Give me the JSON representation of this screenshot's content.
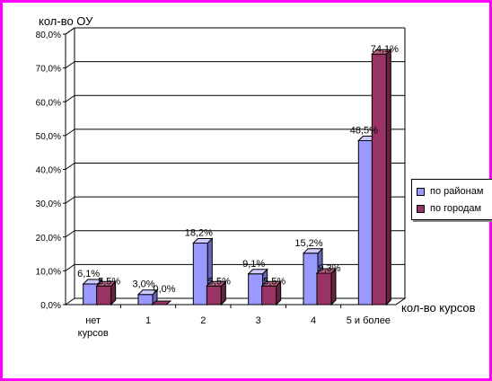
{
  "chart_data": {
    "type": "bar",
    "ylabel": "кол-во ОУ",
    "xlabel": "кол-во курсов",
    "ylim": [
      0,
      80
    ],
    "y_ticks": [
      "0,0%",
      "10,0%",
      "20,0%",
      "30,0%",
      "40,0%",
      "50,0%",
      "60,0%",
      "70,0%",
      "80,0%"
    ],
    "categories": [
      [
        "нет",
        "курсов"
      ],
      [
        "1"
      ],
      [
        "2"
      ],
      [
        "3"
      ],
      [
        "4"
      ],
      [
        "5 и более"
      ]
    ],
    "series": [
      {
        "name": "по районам",
        "color": "#9999ff",
        "values": [
          6.1,
          3.0,
          18.2,
          9.1,
          15.2,
          48.5
        ],
        "labels": [
          "6,1%",
          "3,0%",
          "18,2%",
          "9,1%",
          "15,2%",
          "48,5%"
        ]
      },
      {
        "name": "по городам",
        "color": "#993366",
        "values": [
          5.5,
          0.0,
          5.5,
          5.5,
          9.3,
          74.1
        ],
        "labels": [
          "5,5%",
          "0,0%",
          "5,5%",
          "5,5%",
          "9,3%",
          "74,1%"
        ]
      }
    ],
    "grid": true,
    "legend_position": "right"
  }
}
